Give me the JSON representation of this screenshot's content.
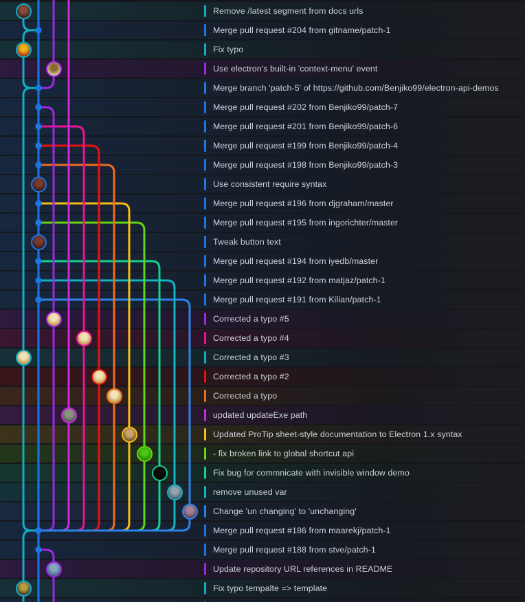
{
  "app": {
    "name": "git-commit-graph"
  },
  "palette": {
    "background": "#16171c",
    "row_text": "#cdd2d8",
    "dot_color": "#1d76e2"
  },
  "lanes": [
    "#13adc2",
    "#1d76e2",
    "#9e27e4",
    "#cb2bdc",
    "#ec1299",
    "#e81210",
    "#f06d1f",
    "#f7bd13",
    "#66d414",
    "#16d18c",
    "#11b3c4",
    "#2c83ea"
  ],
  "rows": [
    {
      "message": "Remove /latest segment from docs urls",
      "lane": 0
    },
    {
      "message": "Merge pull request #204 from gitname/patch-1",
      "lane": 1
    },
    {
      "message": "Fix typo",
      "lane": 0
    },
    {
      "message": "Use electron's built-in 'context-menu' event",
      "lane": 2
    },
    {
      "message": "Merge branch 'patch-5' of https://github.com/Benjiko99/electron-api-demos",
      "lane": 1
    },
    {
      "message": "Merge pull request #202 from Benjiko99/patch-7",
      "lane": 1
    },
    {
      "message": "Merge pull request #201 from Benjiko99/patch-6",
      "lane": 1
    },
    {
      "message": "Merge pull request #199 from Benjiko99/patch-4",
      "lane": 1
    },
    {
      "message": "Merge pull request #198 from Benjiko99/patch-3",
      "lane": 1
    },
    {
      "message": "Use consistent require syntax",
      "lane": 1
    },
    {
      "message": "Merge pull request #196 from djgraham/master",
      "lane": 1
    },
    {
      "message": "Merge pull request #195 from ingorichter/master",
      "lane": 1
    },
    {
      "message": "Tweak button text",
      "lane": 1
    },
    {
      "message": "Merge pull request #194 from iyedb/master",
      "lane": 1
    },
    {
      "message": "Merge pull request #192 from matjaz/patch-1",
      "lane": 1
    },
    {
      "message": "Merge pull request #191 from Kilian/patch-1",
      "lane": 1
    },
    {
      "message": "Corrected a typo #5",
      "lane": 2
    },
    {
      "message": "Corrected a typo #4",
      "lane": 4
    },
    {
      "message": "Corrected a typo #3",
      "lane": 0
    },
    {
      "message": "Corrected a typo #2",
      "lane": 5
    },
    {
      "message": "Corrected a typo",
      "lane": 6
    },
    {
      "message": "updated updateExe path",
      "lane": 3
    },
    {
      "message": "Updated ProTip sheet-style documentation to Electron 1.x syntax",
      "lane": 7
    },
    {
      "message": "- fix broken link to global shortcut api",
      "lane": 8
    },
    {
      "message": "Fix bug for commnicate with invisible window demo",
      "lane": 9
    },
    {
      "message": "remove unused var",
      "lane": 10
    },
    {
      "message": "Change 'un changing' to 'unchanging'",
      "lane": 11
    },
    {
      "message": "Merge pull request #186 from maarekj/patch-1",
      "lane": 1
    },
    {
      "message": "Merge pull request #188 from stve/patch-1",
      "lane": 1
    },
    {
      "message": "Update repository URL references in README",
      "lane": 2
    },
    {
      "message": "Fix typo tempalte => template",
      "lane": 0
    },
    {
      "message": "",
      "lane": 1,
      "partial": true
    }
  ],
  "dots": [
    1,
    4,
    5,
    6,
    7,
    8,
    10,
    11,
    13,
    14,
    15,
    27,
    28
  ],
  "avatars": [
    {
      "row": 0,
      "lane": 0,
      "face": [
        "#8a4a3a",
        "#301a16"
      ]
    },
    {
      "row": 2,
      "lane": 0,
      "face": [
        "#e8b31c",
        "#9e1212"
      ]
    },
    {
      "row": 3,
      "lane": 2,
      "face": [
        "#8a6a30",
        "#eee0bd"
      ]
    },
    {
      "row": 9,
      "lane": 1,
      "face": [
        "#7a3a30",
        "#2a1410"
      ]
    },
    {
      "row": 12,
      "lane": 1,
      "face": [
        "#7a3a30",
        "#2a1410"
      ]
    },
    {
      "row": 16,
      "lane": 2,
      "face": [
        "#f2e2b8",
        "#b8862e"
      ]
    },
    {
      "row": 17,
      "lane": 4,
      "face": [
        "#f2e2b8",
        "#b8862e"
      ]
    },
    {
      "row": 18,
      "lane": 0,
      "face": [
        "#f2e2b8",
        "#b8862e"
      ]
    },
    {
      "row": 19,
      "lane": 5,
      "face": [
        "#f2e2b8",
        "#b8862e"
      ]
    },
    {
      "row": 20,
      "lane": 6,
      "face": [
        "#f2e2b8",
        "#b8862e"
      ]
    },
    {
      "row": 21,
      "lane": 3,
      "face": [
        "#8d9483",
        "#474f44"
      ]
    },
    {
      "row": 22,
      "lane": 7,
      "face": [
        "#caa46a",
        "#5a3e20"
      ]
    },
    {
      "row": 23,
      "lane": 8,
      "face": [
        "#4ec414",
        "#187a06"
      ]
    },
    {
      "row": 24,
      "lane": 9,
      "face": [
        "#0b0b0d",
        "#000000"
      ]
    },
    {
      "row": 25,
      "lane": 10,
      "face": [
        "#93a4ad",
        "#44545e"
      ]
    },
    {
      "row": 26,
      "lane": 11,
      "face": [
        "#a97f98",
        "#4a3348"
      ]
    },
    {
      "row": 29,
      "lane": 2,
      "face": [
        "#86a8c2",
        "#3c5a72"
      ]
    },
    {
      "row": 30,
      "lane": 0,
      "face": [
        "#b89a3e",
        "#23211b"
      ]
    }
  ],
  "graph": {
    "main_lane": 1,
    "teal": {
      "lane": 0,
      "startRow": 0,
      "bulgeRows": [
        1,
        4,
        27
      ]
    },
    "branches": [
      {
        "lane": 2,
        "dotRow": 5
      },
      {
        "lane": 4,
        "dotRow": 6
      },
      {
        "lane": 5,
        "dotRow": 7
      },
      {
        "lane": 6,
        "dotRow": 8
      },
      {
        "lane": 7,
        "dotRow": 10
      },
      {
        "lane": 8,
        "dotRow": 11
      },
      {
        "lane": 9,
        "dotRow": 13
      },
      {
        "lane": 10,
        "dotRow": 14
      },
      {
        "lane": 11,
        "dotRow": 15
      }
    ],
    "top_vertical_lane": 3,
    "merge_in": {
      "lane": 2,
      "fromRow": 3,
      "dotRow": 4
    },
    "branch_down": {
      "lane": 2,
      "dotRow": 28
    },
    "conv_row": 27
  }
}
